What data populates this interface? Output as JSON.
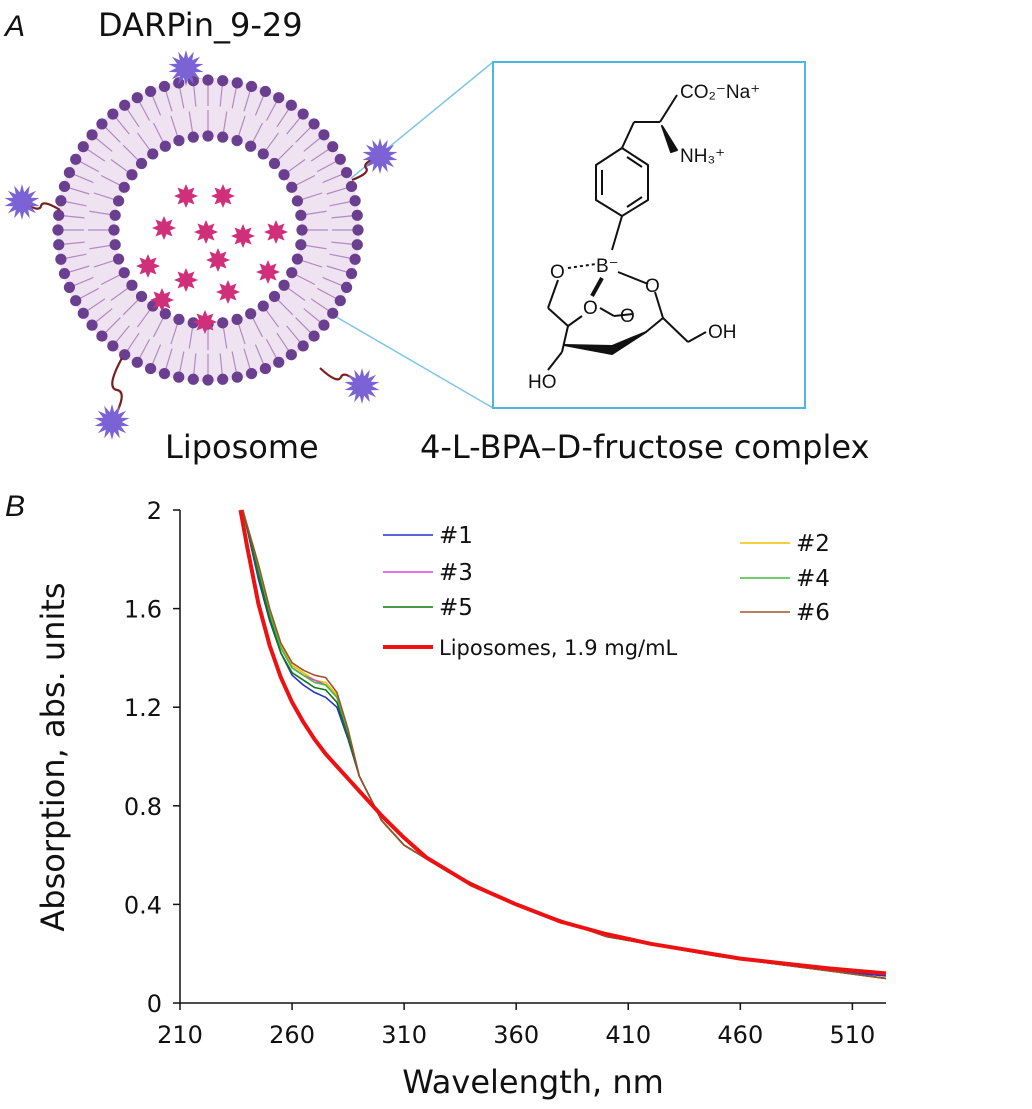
{
  "panel_a": {
    "letter": "A",
    "darpin_label": "DARPin_9-29",
    "liposome_label": "Liposome",
    "complex_label": "4-L-BPA–D-fructose complex",
    "molecule_labels": {
      "carboxylate": "CO₂⁻Na⁺",
      "amine": "NH₃⁺",
      "boron": "B⁻",
      "o1": "O",
      "o2": "O",
      "o3": "O",
      "o4": "O",
      "oh_right": "OH",
      "ho_left": "HO"
    },
    "colors": {
      "lipid_head": "#6b3f8f",
      "membrane_fill": "#efe3f1",
      "payload": "#d0307a",
      "darpin": "#7b63d6",
      "linker": "#7a1f1f",
      "inset_border": "#4cb7e0"
    }
  },
  "panel_b": {
    "letter": "B"
  },
  "chart_data": {
    "type": "line",
    "xlabel": "Wavelength, nm",
    "ylabel": "Absorption, abs. units",
    "xlim": [
      210,
      525
    ],
    "ylim": [
      0,
      2
    ],
    "xticks": [
      "210",
      "260",
      "310",
      "360",
      "410",
      "460",
      "510"
    ],
    "yticks": [
      "0",
      "0.4",
      "0.8",
      "1.2",
      "1.6",
      "2"
    ],
    "grid": false,
    "legend_position": "top-right",
    "series": [
      {
        "name": "#1",
        "color": "#2233cc",
        "x": [
          238,
          245,
          250,
          255,
          260,
          265,
          270,
          275,
          280,
          285,
          290,
          300,
          310,
          330,
          360,
          400,
          450,
          500,
          525
        ],
        "y": [
          2.0,
          1.72,
          1.55,
          1.42,
          1.33,
          1.29,
          1.26,
          1.24,
          1.2,
          1.07,
          0.92,
          0.74,
          0.64,
          0.53,
          0.4,
          0.27,
          0.19,
          0.13,
          0.11
        ]
      },
      {
        "name": "#2",
        "color": "#f2c200",
        "x": [
          238,
          245,
          250,
          255,
          260,
          265,
          270,
          275,
          280,
          285,
          290,
          300,
          310,
          330,
          360,
          400,
          450,
          500,
          525
        ],
        "y": [
          2.0,
          1.75,
          1.58,
          1.45,
          1.37,
          1.34,
          1.31,
          1.3,
          1.25,
          1.1,
          0.92,
          0.74,
          0.64,
          0.53,
          0.4,
          0.27,
          0.19,
          0.13,
          0.1
        ]
      },
      {
        "name": "#3",
        "color": "#dd44dd",
        "x": [
          238,
          245,
          250,
          255,
          260,
          265,
          270,
          275,
          280,
          285,
          290,
          300,
          310,
          330,
          360,
          400,
          450,
          500,
          525
        ],
        "y": [
          2.0,
          1.74,
          1.57,
          1.44,
          1.36,
          1.33,
          1.31,
          1.29,
          1.24,
          1.1,
          0.92,
          0.74,
          0.64,
          0.53,
          0.4,
          0.27,
          0.19,
          0.13,
          0.1
        ]
      },
      {
        "name": "#4",
        "color": "#44bb44",
        "x": [
          238,
          245,
          250,
          255,
          260,
          265,
          270,
          275,
          280,
          285,
          290,
          300,
          310,
          330,
          360,
          400,
          450,
          500,
          525
        ],
        "y": [
          2.0,
          1.76,
          1.58,
          1.44,
          1.36,
          1.33,
          1.3,
          1.29,
          1.24,
          1.1,
          0.92,
          0.74,
          0.64,
          0.53,
          0.4,
          0.27,
          0.19,
          0.13,
          0.1
        ]
      },
      {
        "name": "#5",
        "color": "#117711",
        "x": [
          238,
          245,
          250,
          255,
          260,
          265,
          270,
          275,
          280,
          285,
          290,
          300,
          310,
          330,
          360,
          400,
          450,
          500,
          525
        ],
        "y": [
          2.0,
          1.74,
          1.56,
          1.42,
          1.34,
          1.31,
          1.28,
          1.27,
          1.22,
          1.08,
          0.92,
          0.74,
          0.64,
          0.53,
          0.4,
          0.27,
          0.19,
          0.13,
          0.1
        ]
      },
      {
        "name": "#6",
        "color": "#a0522d",
        "x": [
          238,
          245,
          250,
          255,
          260,
          265,
          270,
          275,
          280,
          285,
          290,
          300,
          310,
          330,
          360,
          400,
          450,
          500,
          525
        ],
        "y": [
          2.0,
          1.78,
          1.6,
          1.46,
          1.38,
          1.35,
          1.33,
          1.32,
          1.26,
          1.11,
          0.92,
          0.74,
          0.64,
          0.53,
          0.4,
          0.27,
          0.19,
          0.13,
          0.1
        ]
      },
      {
        "name": "Liposomes, 1.9 mg/mL",
        "color": "#ee1111",
        "bold": true,
        "x": [
          237,
          240,
          245,
          250,
          255,
          260,
          265,
          270,
          275,
          280,
          285,
          290,
          295,
          300,
          310,
          320,
          340,
          360,
          380,
          400,
          420,
          440,
          460,
          480,
          500,
          525
        ],
        "y": [
          2.0,
          1.85,
          1.62,
          1.45,
          1.32,
          1.22,
          1.14,
          1.07,
          1.01,
          0.96,
          0.91,
          0.86,
          0.81,
          0.76,
          0.67,
          0.59,
          0.48,
          0.4,
          0.33,
          0.28,
          0.24,
          0.21,
          0.18,
          0.16,
          0.14,
          0.12
        ]
      }
    ]
  }
}
